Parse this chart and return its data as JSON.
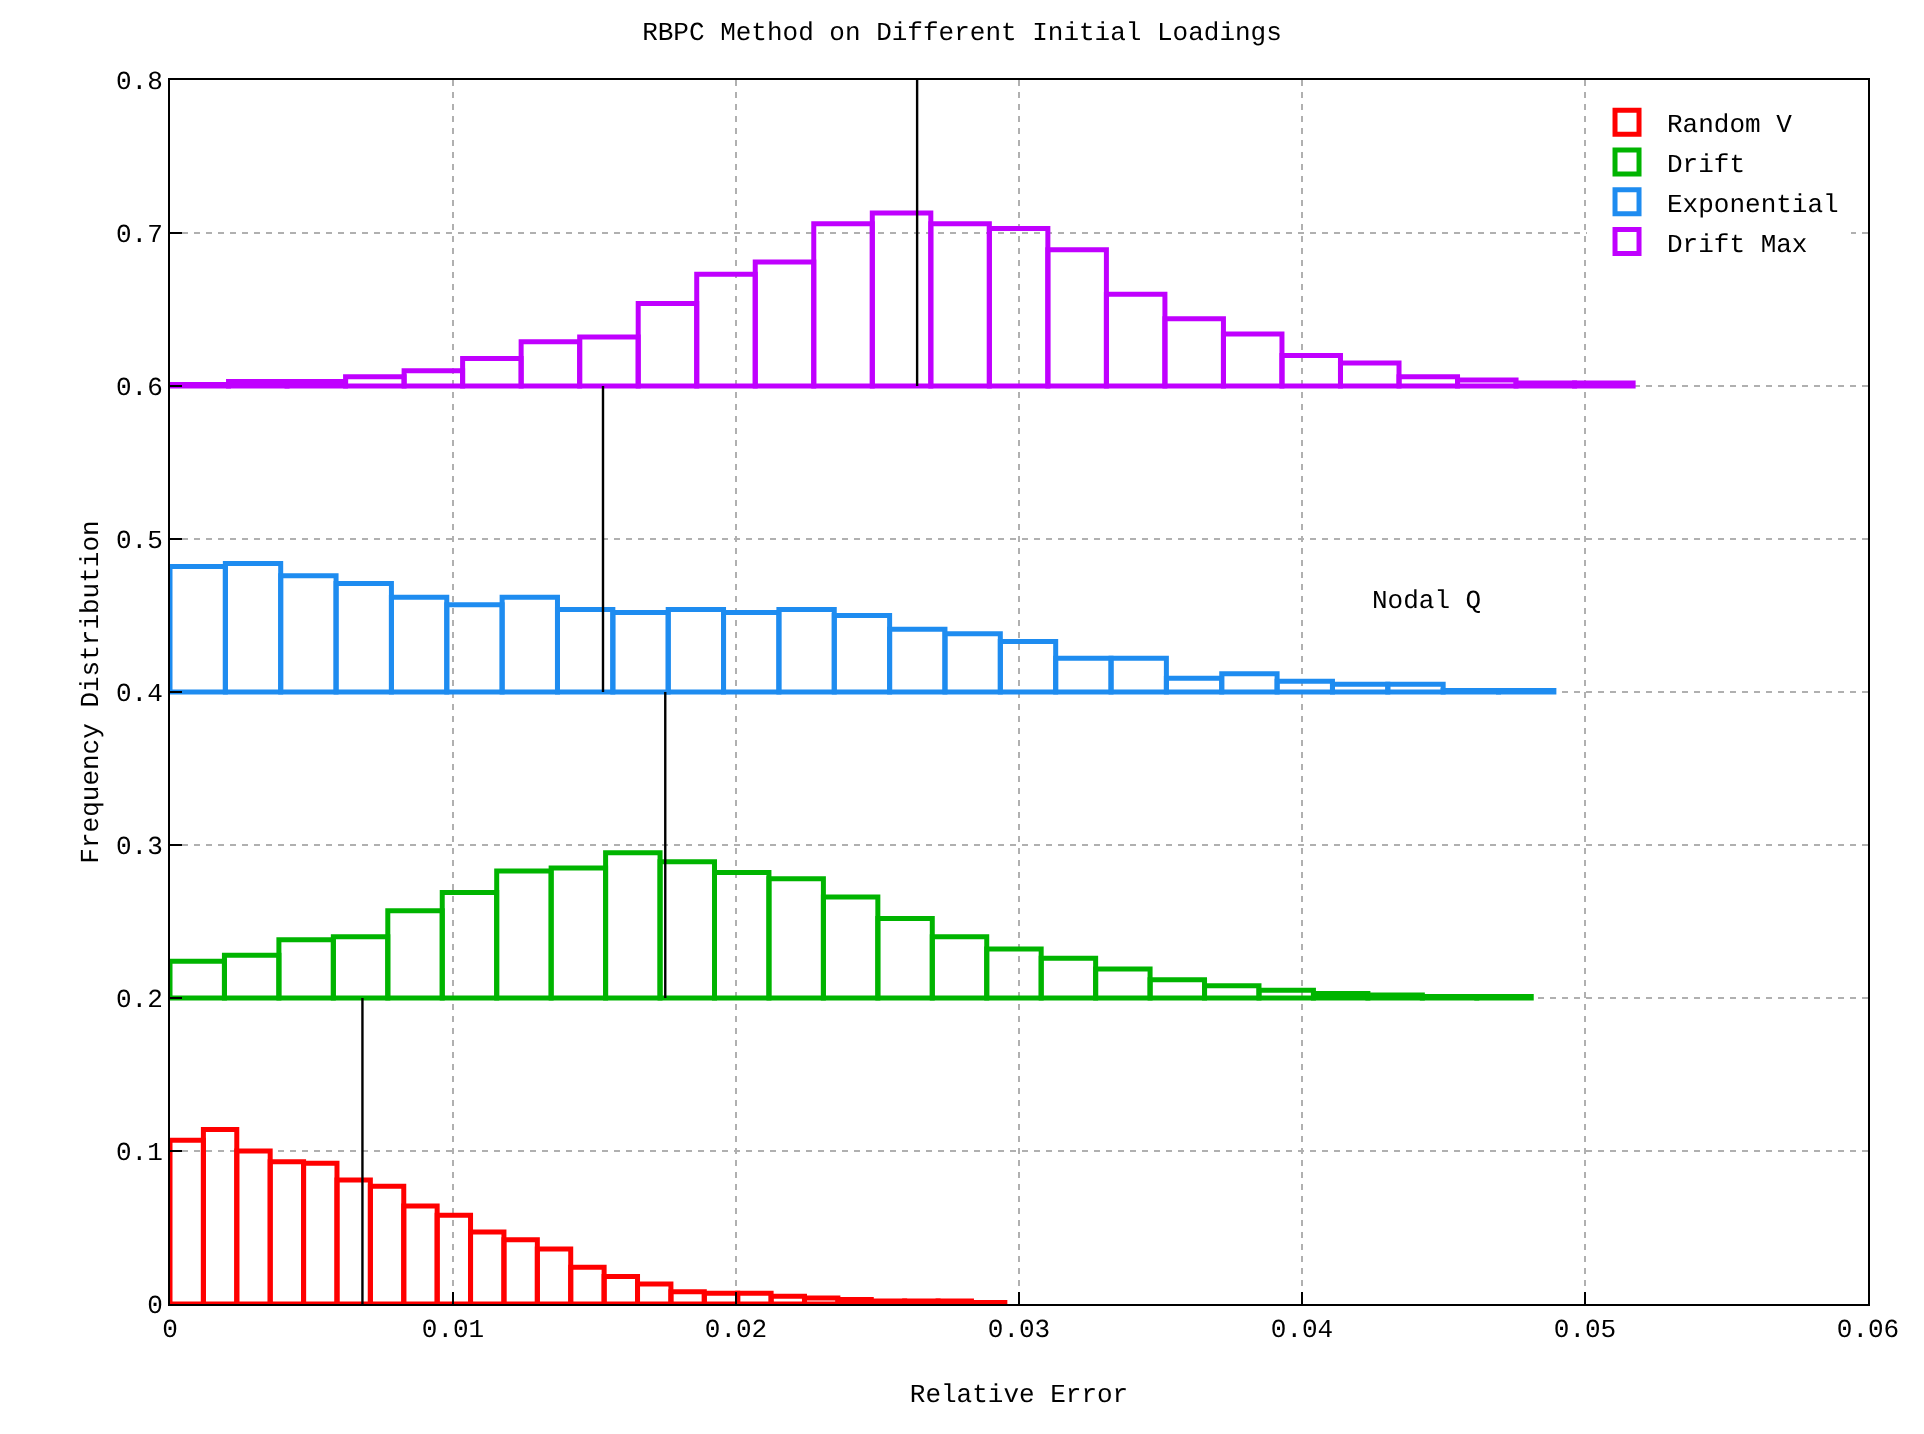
{
  "chart_data": {
    "type": "histogram",
    "title": "RBPC Method on Different Initial Loadings",
    "xlabel": "Relative Error",
    "ylabel": "Frequency Distribution",
    "xlim": [
      0,
      0.06
    ],
    "xticks": [
      0,
      0.01,
      0.02,
      0.03,
      0.04,
      0.05,
      0.06
    ],
    "ylim": [
      0,
      0.8
    ],
    "yticks": [
      0,
      0.1,
      0.2,
      0.3,
      0.4,
      0.5,
      0.6,
      0.7,
      0.8
    ],
    "grid": true,
    "legend": "top right",
    "annotations": [
      "Nodal Q"
    ],
    "series": [
      {
        "name": "Random V",
        "color": "#ff0000",
        "bins": [
          0,
          0.00118,
          0.00236,
          0.00354,
          0.00472,
          0.0059,
          0.00708,
          0.00826,
          0.00944,
          0.01062,
          0.0118,
          0.01298,
          0.01416,
          0.01534,
          0.01652,
          0.0177,
          0.01888,
          0.02006,
          0.02124,
          0.02242,
          0.0236,
          0.02478,
          0.02596,
          0.02714,
          0.02832,
          0.0295
        ],
        "values": [
          0.107,
          0.114,
          0.1,
          0.093,
          0.092,
          0.081,
          0.077,
          0.064,
          0.058,
          0.047,
          0.042,
          0.036,
          0.024,
          0.018,
          0.013,
          0.008,
          0.007,
          0.007,
          0.005,
          0.004,
          0.003,
          0.002,
          0.002,
          0.002,
          0.001
        ],
        "base": [
          0,
          0,
          0,
          0,
          0,
          0,
          0,
          0,
          0,
          0,
          0,
          0,
          0,
          0,
          0,
          0,
          0,
          0,
          0,
          0,
          0,
          0,
          0,
          0,
          0
        ]
      },
      {
        "name": "Drift",
        "color": "#00b400",
        "bins": [
          0,
          0.001924,
          0.003848,
          0.005772,
          0.007696,
          0.00962,
          0.011544,
          0.013468,
          0.015392,
          0.017316,
          0.01924,
          0.021164,
          0.023088,
          0.025012,
          0.026936,
          0.02886,
          0.030784,
          0.032708,
          0.034632,
          0.036556,
          0.03848,
          0.040404,
          0.042328,
          0.044252,
          0.046176,
          0.0481
        ],
        "values": [
          0.024,
          0.028,
          0.038,
          0.04,
          0.057,
          0.069,
          0.083,
          0.085,
          0.095,
          0.089,
          0.082,
          0.078,
          0.066,
          0.052,
          0.04,
          0.032,
          0.026,
          0.019,
          0.012,
          0.008,
          0.005,
          0.003,
          0.002,
          0.001,
          0.001
        ],
        "base": [
          0.2,
          0.2,
          0.2,
          0.2,
          0.2,
          0.2,
          0.2,
          0.2,
          0.2,
          0.2,
          0.2,
          0.2,
          0.2,
          0.2,
          0.2,
          0.2,
          0.2,
          0.2,
          0.2,
          0.2,
          0.2,
          0.2,
          0.2,
          0.2,
          0.2
        ]
      },
      {
        "name": "Exponential",
        "color": "#1e8cf0",
        "bins": [
          0,
          0.001956,
          0.003912,
          0.005868,
          0.007824,
          0.00978,
          0.011736,
          0.013692,
          0.015648,
          0.017604,
          0.01956,
          0.021516,
          0.023472,
          0.025428,
          0.027384,
          0.02934,
          0.031296,
          0.033252,
          0.035208,
          0.037164,
          0.03912,
          0.041076,
          0.043032,
          0.044988,
          0.046944,
          0.0489
        ],
        "values": [
          0.082,
          0.084,
          0.076,
          0.071,
          0.062,
          0.057,
          0.062,
          0.054,
          0.052,
          0.054,
          0.052,
          0.054,
          0.05,
          0.041,
          0.038,
          0.033,
          0.022,
          0.022,
          0.009,
          0.012,
          0.007,
          0.005,
          0.005,
          0.001,
          0.001
        ],
        "base": [
          0.4,
          0.4,
          0.4,
          0.4,
          0.4,
          0.4,
          0.4,
          0.4,
          0.4,
          0.4,
          0.4,
          0.4,
          0.4,
          0.4,
          0.4,
          0.4,
          0.4,
          0.4,
          0.4,
          0.4,
          0.4,
          0.4,
          0.4,
          0.4,
          0.4
        ]
      },
      {
        "name": "Drift Max",
        "color": "#c000ff",
        "bins": [
          0,
          0.002068,
          0.004136,
          0.006204,
          0.008272,
          0.01034,
          0.012408,
          0.014476,
          0.016544,
          0.018612,
          0.02068,
          0.022748,
          0.024816,
          0.026884,
          0.028952,
          0.03102,
          0.033088,
          0.035156,
          0.037224,
          0.039292,
          0.04136,
          0.043428,
          0.045496,
          0.047564,
          0.049632,
          0.0517
        ],
        "values": [
          0.001,
          0.003,
          0.003,
          0.006,
          0.01,
          0.018,
          0.029,
          0.032,
          0.054,
          0.073,
          0.081,
          0.106,
          0.113,
          0.106,
          0.103,
          0.089,
          0.06,
          0.044,
          0.034,
          0.02,
          0.015,
          0.006,
          0.004,
          0.002,
          0.002
        ],
        "base": [
          0.6,
          0.6,
          0.6,
          0.6,
          0.6,
          0.6,
          0.6,
          0.6,
          0.6,
          0.6,
          0.6,
          0.6,
          0.6,
          0.6,
          0.6,
          0.6,
          0.6,
          0.6,
          0.6,
          0.6,
          0.6,
          0.6,
          0.6,
          0.6,
          0.6
        ]
      },
      {
        "type": "line",
        "color": "#000000",
        "x": [
          0.0068,
          0.0068
        ],
        "values": [
          0,
          0.2
        ]
      },
      {
        "type": "line",
        "color": "#000000",
        "x": [
          0.0175,
          0.0175
        ],
        "values": [
          0.2,
          0.4
        ]
      },
      {
        "type": "line",
        "color": "#000000",
        "x": [
          0.0153,
          0.0153
        ],
        "values": [
          0.4,
          0.6
        ]
      },
      {
        "type": "line",
        "color": "#000000",
        "x": [
          0.0264,
          0.0264
        ],
        "values": [
          0.6,
          0.8
        ]
      }
    ]
  }
}
